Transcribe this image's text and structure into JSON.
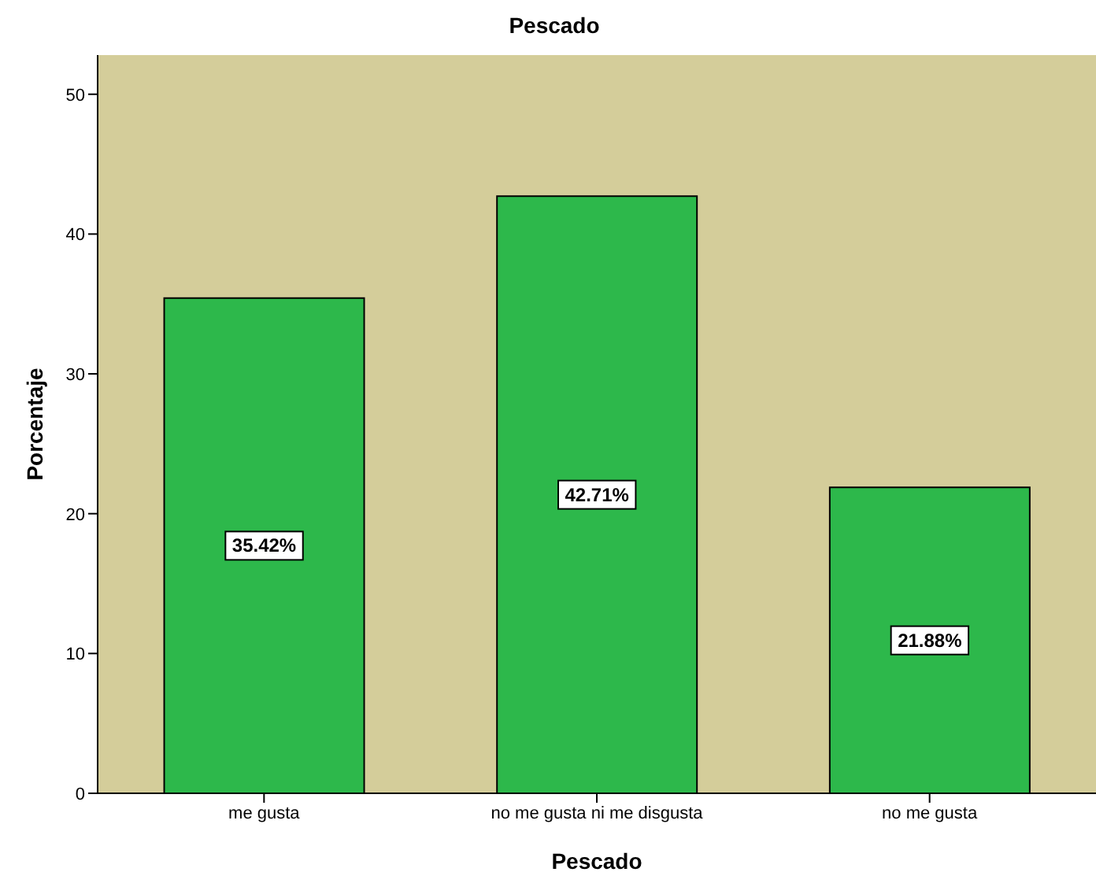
{
  "chart_data": {
    "type": "bar",
    "title": "Pescado",
    "xlabel": "Pescado",
    "ylabel": "Porcentaje",
    "categories": [
      "me gusta",
      "no me gusta ni me disgusta",
      "no me gusta"
    ],
    "values": [
      35.42,
      42.71,
      21.88
    ],
    "value_labels": [
      "35.42%",
      "42.71%",
      "21.88%"
    ],
    "color": "#2db84b",
    "ylim": [
      0,
      52.8
    ],
    "yticks": [
      0,
      10,
      20,
      30,
      40,
      50
    ],
    "grid": false,
    "legend": false
  }
}
